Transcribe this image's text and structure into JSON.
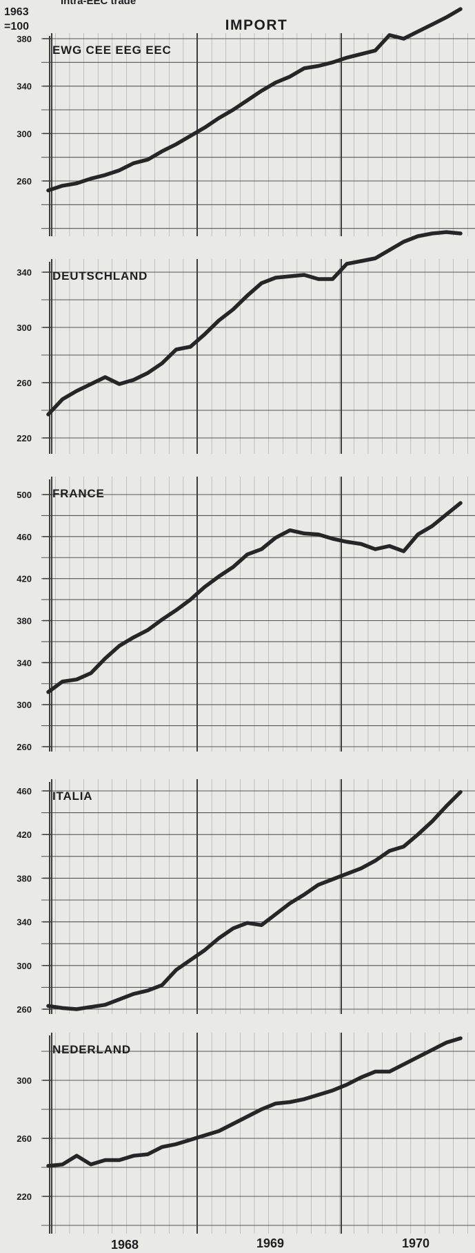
{
  "header": {
    "subtitle": "Intra-EEC trade",
    "base_line1": "1963",
    "base_line2": "=100",
    "title": "IMPORT"
  },
  "x_axis": {
    "tick_labels": [
      "1968",
      "1969",
      "1970"
    ]
  },
  "colors": {
    "background": "#e9e9e6",
    "grid": "#3c3c3c",
    "line": "#262626",
    "text": "#1e1e1e"
  },
  "chart_data": [
    {
      "type": "line",
      "title": "EWG CEE EEG EEC",
      "x_unit": "month index from Jan 1968 (0) to Jun 1970 (29)",
      "x": [
        0,
        1,
        2,
        3,
        4,
        5,
        6,
        7,
        8,
        9,
        10,
        11,
        12,
        13,
        14,
        15,
        16,
        17,
        18,
        19,
        20,
        21,
        22,
        23,
        24,
        25,
        26,
        27,
        28,
        29
      ],
      "y": [
        252,
        256,
        258,
        262,
        265,
        269,
        275,
        278,
        285,
        291,
        298,
        305,
        313,
        320,
        328,
        336,
        343,
        348,
        355,
        357,
        360,
        364,
        367,
        370,
        383,
        380,
        386,
        392,
        398,
        405
      ],
      "yticks": [
        260,
        300,
        340,
        380
      ]
    },
    {
      "type": "line",
      "title": "DEUTSCHLAND",
      "x": [
        0,
        1,
        2,
        3,
        4,
        5,
        6,
        7,
        8,
        9,
        10,
        11,
        12,
        13,
        14,
        15,
        16,
        17,
        18,
        19,
        20,
        21,
        22,
        23,
        24,
        25,
        26,
        27,
        28,
        29
      ],
      "y": [
        237,
        248,
        254,
        259,
        264,
        259,
        262,
        267,
        274,
        284,
        286,
        295,
        305,
        313,
        323,
        332,
        336,
        337,
        338,
        335,
        335,
        346,
        348,
        350,
        356,
        362,
        366,
        368,
        369,
        368
      ],
      "yticks": [
        220,
        260,
        300,
        340
      ]
    },
    {
      "type": "line",
      "title": "FRANCE",
      "x": [
        0,
        1,
        2,
        3,
        4,
        5,
        6,
        7,
        8,
        9,
        10,
        11,
        12,
        13,
        14,
        15,
        16,
        17,
        18,
        19,
        20,
        21,
        22,
        23,
        24,
        25,
        26,
        27,
        28,
        29
      ],
      "y": [
        312,
        322,
        324,
        330,
        344,
        356,
        364,
        371,
        381,
        390,
        400,
        412,
        422,
        431,
        443,
        448,
        459,
        466,
        463,
        462,
        458,
        455,
        453,
        448,
        451,
        446,
        462,
        470,
        481,
        492
      ],
      "yticks": [
        260,
        300,
        340,
        380,
        420,
        460,
        500
      ]
    },
    {
      "type": "line",
      "title": "ITALIA",
      "x": [
        0,
        1,
        2,
        3,
        4,
        5,
        6,
        7,
        8,
        9,
        10,
        11,
        12,
        13,
        14,
        15,
        16,
        17,
        18,
        19,
        20,
        21,
        22,
        23,
        24,
        25,
        26,
        27,
        28,
        29
      ],
      "y": [
        263,
        261,
        260,
        262,
        264,
        269,
        274,
        277,
        282,
        296,
        305,
        314,
        325,
        334,
        339,
        337,
        347,
        357,
        365,
        374,
        379,
        384,
        389,
        396,
        405,
        409,
        420,
        432,
        446,
        459
      ],
      "yticks": [
        260,
        300,
        340,
        380,
        420,
        460
      ]
    },
    {
      "type": "line",
      "title": "NEDERLAND",
      "x": [
        0,
        1,
        2,
        3,
        4,
        5,
        6,
        7,
        8,
        9,
        10,
        11,
        12,
        13,
        14,
        15,
        16,
        17,
        18,
        19,
        20,
        21,
        22,
        23,
        24,
        25,
        26,
        27,
        28,
        29
      ],
      "y": [
        241,
        242,
        248,
        242,
        245,
        245,
        248,
        249,
        254,
        256,
        259,
        262,
        265,
        270,
        275,
        280,
        284,
        285,
        287,
        290,
        293,
        297,
        302,
        306,
        306,
        311,
        316,
        321,
        326,
        329
      ],
      "yticks": [
        220,
        260,
        300
      ]
    }
  ]
}
